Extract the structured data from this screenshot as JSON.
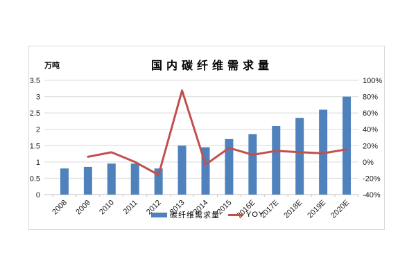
{
  "chart_data": {
    "type": "bar+line",
    "title": "国内碳纤维需求量",
    "categories": [
      "2008",
      "2009",
      "2010",
      "2011",
      "2012",
      "2013",
      "2014",
      "2015",
      "2016E",
      "2017E",
      "2018E",
      "2019E",
      "2020E"
    ],
    "series": [
      {
        "name": "碳纤维需求量",
        "type": "bar",
        "axis": "left",
        "color": "#4F81BD",
        "unit": "万吨",
        "values": [
          0.8,
          0.85,
          0.95,
          0.95,
          0.8,
          1.5,
          1.45,
          1.7,
          1.85,
          2.1,
          2.35,
          2.6,
          3.0
        ]
      },
      {
        "name": "YOY",
        "type": "line",
        "axis": "right",
        "color": "#C0504D",
        "unit": "%",
        "values": [
          null,
          6.3,
          11.8,
          0,
          -15.8,
          87.5,
          -3.3,
          17.2,
          8.8,
          13.5,
          11.9,
          10.6,
          15.4
        ]
      }
    ],
    "left_axis": {
      "label": "万吨",
      "min": 0,
      "max": 3.5,
      "step": 0.5,
      "ticks": [
        "0",
        "0.5",
        "1",
        "1.5",
        "2",
        "2.5",
        "3",
        "3.5"
      ]
    },
    "right_axis": {
      "min": -40,
      "max": 100,
      "step": 20,
      "ticks": [
        "-40%",
        "-20%",
        "0%",
        "20%",
        "40%",
        "60%",
        "80%",
        "100%"
      ]
    },
    "grid": true,
    "legend_position": "bottom-center-overlapping-x-labels",
    "colors": {
      "gridline": "#D9D9D9",
      "axis_line": "#BFBFBF",
      "frame_border": "#D9D9D9",
      "text": "#1A1A1A"
    }
  }
}
